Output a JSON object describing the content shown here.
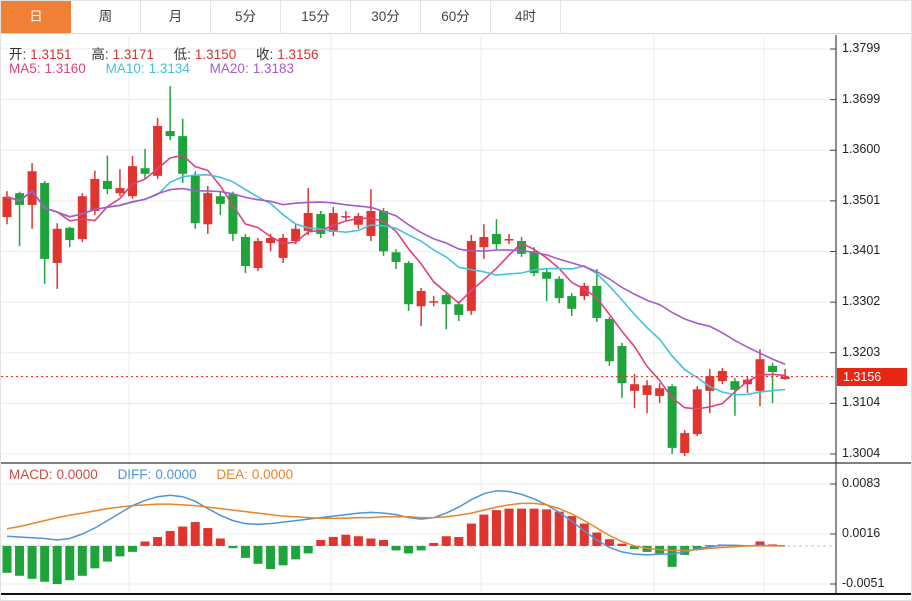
{
  "tabs": {
    "items": [
      {
        "label": "日",
        "active": true
      },
      {
        "label": "周",
        "active": false
      },
      {
        "label": "月",
        "active": false
      },
      {
        "label": "5分",
        "active": false
      },
      {
        "label": "15分",
        "active": false
      },
      {
        "label": "30分",
        "active": false
      },
      {
        "label": "60分",
        "active": false
      },
      {
        "label": "4时",
        "active": false
      }
    ]
  },
  "main_chart": {
    "ohlc": [
      {
        "label": "开:",
        "value": "1.3151"
      },
      {
        "label": "高:",
        "value": "1.3171"
      },
      {
        "label": "低:",
        "value": "1.3150"
      },
      {
        "label": "收:",
        "value": "1.3156"
      }
    ],
    "ma_legend": [
      {
        "label": "MA5:",
        "value": "1.3160"
      },
      {
        "label": "MA10:",
        "value": "1.3134"
      },
      {
        "label": "MA20:",
        "value": "1.3183"
      }
    ],
    "price_axis_labels": [
      "1.3799",
      "1.3699",
      "1.3600",
      "1.3501",
      "1.3401",
      "1.3302",
      "1.3203",
      "1.3104",
      "1.3004"
    ],
    "current_price": "1.3156"
  },
  "macd_panel": {
    "legend": [
      {
        "label": "MACD:",
        "value": "0.0000"
      },
      {
        "label": "DIFF:",
        "value": "0.0000"
      },
      {
        "label": "DEA:",
        "value": "0.0000"
      }
    ],
    "axis_labels": [
      "0.0083",
      "0.0016",
      "-0.0051"
    ]
  },
  "colors": {
    "up": "#e0342e",
    "down": "#1fa43c",
    "ma5": "#e0417f",
    "ma10": "#45c2d8",
    "ma20": "#a55bc8",
    "diff": "#4f94d9",
    "dea": "#e8842c",
    "tab_active": "#ef8035",
    "price_tag": "#e82713",
    "dotted_line": "#e8362a",
    "zero_dash": "#aecbe8",
    "grid": "#ececec",
    "axis": "#444",
    "ohlc_value": "#d8352e"
  },
  "chart_data": {
    "type": "candlestick+macd",
    "title": "",
    "price_axis": {
      "top_value": 1.3799,
      "bottom_value": 1.3004,
      "tick_labels": [
        1.3799,
        1.3699,
        1.36,
        1.3501,
        1.3401,
        1.3302,
        1.3203,
        1.3104,
        1.3004
      ]
    },
    "current_price": 1.3156,
    "ma_periods": [
      5,
      10,
      20
    ],
    "candles_format": [
      "open",
      "close",
      "low",
      "high"
    ],
    "candles": [
      [
        1.3469,
        1.3509,
        1.3455,
        1.352
      ],
      [
        1.3516,
        1.3493,
        1.3412,
        1.3519
      ],
      [
        1.3493,
        1.3559,
        1.3446,
        1.3575
      ],
      [
        1.3536,
        1.3387,
        1.3338,
        1.354
      ],
      [
        1.3379,
        1.3446,
        1.3328,
        1.3457
      ],
      [
        1.3448,
        1.3424,
        1.341,
        1.345
      ],
      [
        1.3426,
        1.351,
        1.342,
        1.3516
      ],
      [
        1.3481,
        1.3544,
        1.3473,
        1.356
      ],
      [
        1.354,
        1.3524,
        1.3514,
        1.359
      ],
      [
        1.3516,
        1.3526,
        1.351,
        1.3563
      ],
      [
        1.351,
        1.3569,
        1.3505,
        1.3589
      ],
      [
        1.3565,
        1.3554,
        1.3544,
        1.3603
      ],
      [
        1.355,
        1.3648,
        1.3544,
        1.3664
      ],
      [
        1.3638,
        1.3628,
        1.362,
        1.3726
      ],
      [
        1.3628,
        1.3554,
        1.3536,
        1.3662
      ],
      [
        1.355,
        1.3457,
        1.3446,
        1.3559
      ],
      [
        1.3455,
        1.3516,
        1.3436,
        1.353
      ],
      [
        1.351,
        1.3495,
        1.3473,
        1.3519
      ],
      [
        1.3514,
        1.3436,
        1.3422,
        1.3519
      ],
      [
        1.343,
        1.3373,
        1.3359,
        1.3436
      ],
      [
        1.3369,
        1.3422,
        1.3363,
        1.3428
      ],
      [
        1.3418,
        1.3428,
        1.3402,
        1.3436
      ],
      [
        1.3389,
        1.3428,
        1.3379,
        1.3436
      ],
      [
        1.3422,
        1.3446,
        1.3416,
        1.3455
      ],
      [
        1.3442,
        1.3477,
        1.3434,
        1.3526
      ],
      [
        1.3475,
        1.3436,
        1.3428,
        1.3481
      ],
      [
        1.344,
        1.3477,
        1.3432,
        1.3489
      ],
      [
        1.3471,
        1.3471,
        1.3461,
        1.3481
      ],
      [
        1.3454,
        1.3471,
        1.3446,
        1.3477
      ],
      [
        1.3432,
        1.3481,
        1.3422,
        1.3524
      ],
      [
        1.3481,
        1.3402,
        1.3393,
        1.3487
      ],
      [
        1.34,
        1.3381,
        1.3367,
        1.3406
      ],
      [
        1.3379,
        1.3298,
        1.3285,
        1.3383
      ],
      [
        1.3294,
        1.3324,
        1.3255,
        1.333
      ],
      [
        1.3304,
        1.3304,
        1.3294,
        1.3314
      ],
      [
        1.3316,
        1.3298,
        1.3249,
        1.332
      ],
      [
        1.3298,
        1.3277,
        1.3265,
        1.3304
      ],
      [
        1.3285,
        1.3422,
        1.3277,
        1.3434
      ],
      [
        1.341,
        1.343,
        1.3387,
        1.3455
      ],
      [
        1.3436,
        1.3416,
        1.3406,
        1.3465
      ],
      [
        1.3426,
        1.3426,
        1.3416,
        1.3436
      ],
      [
        1.3422,
        1.3397,
        1.3391,
        1.343
      ],
      [
        1.3402,
        1.3359,
        1.3353,
        1.341
      ],
      [
        1.3361,
        1.3348,
        1.3304,
        1.3367
      ],
      [
        1.3348,
        1.331,
        1.33,
        1.3353
      ],
      [
        1.3314,
        1.3289,
        1.3275,
        1.332
      ],
      [
        1.3314,
        1.3334,
        1.3306,
        1.334
      ],
      [
        1.3334,
        1.3271,
        1.3263,
        1.3367
      ],
      [
        1.3269,
        1.3186,
        1.3177,
        1.3273
      ],
      [
        1.3216,
        1.3143,
        1.3114,
        1.3222
      ],
      [
        1.3128,
        1.3141,
        1.3094,
        1.3161
      ],
      [
        1.312,
        1.3139,
        1.3084,
        1.3149
      ],
      [
        1.3118,
        1.3133,
        1.3104,
        1.3143
      ],
      [
        1.3137,
        1.3016,
        1.3004,
        1.3141
      ],
      [
        1.3006,
        1.3045,
        1.3,
        1.3051
      ],
      [
        1.3043,
        1.3131,
        1.3039,
        1.3137
      ],
      [
        1.3128,
        1.3157,
        1.3084,
        1.3171
      ],
      [
        1.3147,
        1.3167,
        1.3141,
        1.3173
      ],
      [
        1.3147,
        1.313,
        1.3079,
        1.3153
      ],
      [
        1.3141,
        1.315,
        1.3124,
        1.3155
      ],
      [
        1.3128,
        1.319,
        1.3098,
        1.321
      ],
      [
        1.3177,
        1.3165,
        1.3104,
        1.3183
      ],
      [
        1.3151,
        1.3156,
        1.315,
        1.3171
      ]
    ],
    "macd": {
      "axis": {
        "top": 0.0083,
        "mid": 0.0016,
        "bottom": -0.0051
      },
      "hist": [
        -0.0036,
        -0.004,
        -0.0044,
        -0.0048,
        -0.0051,
        -0.0046,
        -0.004,
        -0.003,
        -0.0021,
        -0.0014,
        -0.0008,
        0.0006,
        0.0012,
        0.002,
        0.0026,
        0.0032,
        0.0024,
        0.001,
        -0.0003,
        -0.0016,
        -0.0024,
        -0.0031,
        -0.0026,
        -0.0018,
        -0.001,
        0.0008,
        0.0012,
        0.0015,
        0.0013,
        0.001,
        0.0008,
        -0.0006,
        -0.001,
        -0.0006,
        0.0004,
        0.0013,
        0.0012,
        0.003,
        0.0042,
        0.0048,
        0.005,
        0.005,
        0.005,
        0.0049,
        0.0046,
        0.004,
        0.003,
        0.0018,
        0.0009,
        0.0003,
        -0.0004,
        -0.0008,
        -0.001,
        -0.0028,
        -0.0012,
        -0.0004,
        0.0001,
        0.0002,
        0.0001,
        0.0001,
        0.0006,
        0.0002,
        0.0
      ],
      "diff": [
        0.0013,
        0.0012,
        0.0011,
        0.001,
        0.0008,
        0.001,
        0.0016,
        0.0024,
        0.0034,
        0.0044,
        0.0054,
        0.0061,
        0.0066,
        0.0068,
        0.0066,
        0.006,
        0.005,
        0.0041,
        0.0034,
        0.003,
        0.0029,
        0.003,
        0.0032,
        0.0034,
        0.0036,
        0.0038,
        0.004,
        0.0042,
        0.0044,
        0.0045,
        0.0044,
        0.0042,
        0.0038,
        0.0036,
        0.0038,
        0.0044,
        0.0052,
        0.0062,
        0.007,
        0.0074,
        0.0073,
        0.0069,
        0.0063,
        0.0055,
        0.0045,
        0.0033,
        0.002,
        0.0008,
        -0.0002,
        -0.0008,
        -0.0011,
        -0.0012,
        -0.0011,
        -0.0011,
        -0.0008,
        -0.0004,
        -0.0001,
        0.0001,
        0.0001,
        0.0,
        0.0001,
        0.0,
        0.0
      ],
      "dea": [
        0.0023,
        0.0026,
        0.003,
        0.0034,
        0.0038,
        0.0041,
        0.0044,
        0.0047,
        0.005,
        0.0052,
        0.0054,
        0.0055,
        0.0056,
        0.0056,
        0.0055,
        0.0054,
        0.0052,
        0.005,
        0.0048,
        0.0046,
        0.0044,
        0.0042,
        0.004,
        0.0039,
        0.0038,
        0.0037,
        0.0037,
        0.0037,
        0.0038,
        0.0038,
        0.0039,
        0.0039,
        0.0039,
        0.0038,
        0.0038,
        0.0039,
        0.0041,
        0.0044,
        0.0048,
        0.0052,
        0.0055,
        0.0057,
        0.0057,
        0.0055,
        0.005,
        0.0043,
        0.0034,
        0.0024,
        0.0014,
        0.0006,
        0.0,
        -0.0003,
        -0.0005,
        -0.0006,
        -0.0006,
        -0.0005,
        -0.0003,
        -0.0002,
        -0.0001,
        0.0,
        0.0,
        0.0,
        0.0
      ]
    }
  }
}
